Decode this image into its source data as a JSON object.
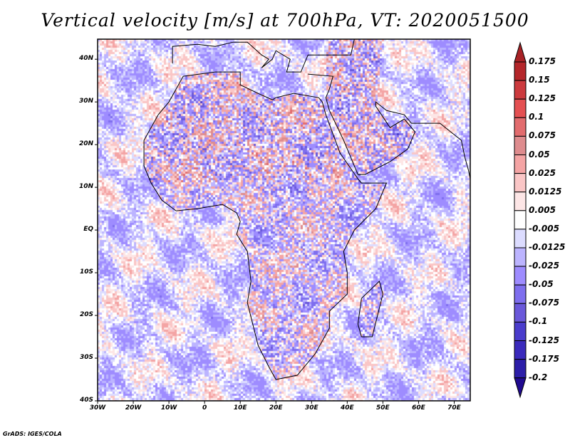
{
  "title": "Vertical velocity [m/s] at 700hPa, VT: 2020051500",
  "credit": "GrADS: IGES/COLA",
  "map": {
    "lon_range": [
      -30,
      74.5
    ],
    "lat_range": [
      -40,
      44.7
    ],
    "lat_ticks": [
      {
        "v": 40,
        "label": "40N"
      },
      {
        "v": 30,
        "label": "30N"
      },
      {
        "v": 20,
        "label": "20N"
      },
      {
        "v": 10,
        "label": "10N"
      },
      {
        "v": 0,
        "label": "EQ"
      },
      {
        "v": -10,
        "label": "10S"
      },
      {
        "v": -20,
        "label": "20S"
      },
      {
        "v": -30,
        "label": "30S"
      },
      {
        "v": -40,
        "label": "40S"
      }
    ],
    "lon_ticks": [
      {
        "v": -30,
        "label": "30W"
      },
      {
        "v": -20,
        "label": "20W"
      },
      {
        "v": -10,
        "label": "10W"
      },
      {
        "v": 0,
        "label": "0"
      },
      {
        "v": 10,
        "label": "10E"
      },
      {
        "v": 20,
        "label": "20E"
      },
      {
        "v": 30,
        "label": "30E"
      },
      {
        "v": 40,
        "label": "40E"
      },
      {
        "v": 50,
        "label": "50E"
      },
      {
        "v": 60,
        "label": "60E"
      },
      {
        "v": 70,
        "label": "70E"
      }
    ]
  },
  "colorbar": {
    "labels": [
      "0.175",
      "0.15",
      "0.125",
      "0.1",
      "0.075",
      "0.05",
      "0.025",
      "0.0125",
      "0.005",
      "-0.005",
      "-0.0125",
      "-0.025",
      "-0.05",
      "-0.075",
      "-0.1",
      "-0.125",
      "-0.175",
      "-0.2"
    ],
    "top_arrow_color": "#a82226",
    "bottom_arrow_color": "#200a90",
    "box_colors": [
      "#b4262a",
      "#cc3a3e",
      "#e45052",
      "#e26c6e",
      "#de8c8e",
      "#f4a4a4",
      "#fac6c6",
      "#fde6e6",
      "#ffffff",
      "#dcdcff",
      "#bcb4ff",
      "#9e8cff",
      "#7e6eee",
      "#6a58da",
      "#4a3ccc",
      "#3a2abc",
      "#2c1ea8"
    ]
  }
}
